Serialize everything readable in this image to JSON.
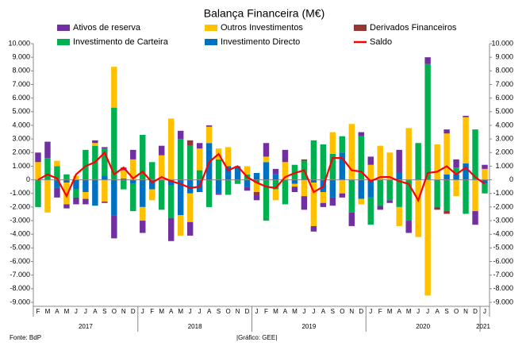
{
  "chart_data": {
    "type": "bar",
    "title": "Balança Financeira (M€)",
    "categories": [
      "F",
      "M",
      "A",
      "M",
      "J",
      "J",
      "A",
      "S",
      "O",
      "N",
      "D",
      "J",
      "F",
      "M",
      "A",
      "M",
      "J",
      "J",
      "A",
      "S",
      "O",
      "N",
      "D",
      "J",
      "F",
      "M",
      "A",
      "M",
      "J",
      "J",
      "A",
      "S",
      "O",
      "N",
      "D",
      "J",
      "F",
      "M",
      "A",
      "M",
      "J",
      "J",
      "A",
      "S",
      "O",
      "N",
      "D",
      "J"
    ],
    "years": [
      "2017",
      "2018",
      "2019",
      "2020",
      "2021"
    ],
    "series": [
      {
        "name": "Ativos de reserva",
        "color": "#7030a0",
        "values": [
          700,
          1200,
          -700,
          -300,
          -500,
          -400,
          200,
          100,
          -1700,
          200,
          700,
          -900,
          0,
          700,
          -1700,
          600,
          -1000,
          400,
          100,
          -100,
          0,
          0,
          -300,
          -400,
          1000,
          400,
          900,
          -400,
          -1000,
          -400,
          -300,
          -600,
          -300,
          -1000,
          300,
          600,
          -300,
          -200,
          1700,
          -900,
          0,
          500,
          0,
          300,
          600,
          100,
          -1000,
          300
        ]
      },
      {
        "name": "Outros Investimentos",
        "color": "#ffc000",
        "values": [
          1300,
          -2400,
          400,
          -1600,
          300,
          -500,
          200,
          -1600,
          3000,
          600,
          1500,
          -1000,
          -800,
          1800,
          4500,
          -1500,
          -2100,
          1600,
          1200,
          800,
          1400,
          0,
          600,
          -700,
          400,
          -800,
          1300,
          -200,
          -1200,
          -3200,
          -800,
          1600,
          -1000,
          4100,
          -400,
          1100,
          2500,
          2000,
          -1400,
          3800,
          -4200,
          -8500,
          2600,
          3000,
          -1200,
          3400,
          -2300,
          800
        ]
      },
      {
        "name": "Derivados Financeiros",
        "color": "#943634",
        "values": [
          0,
          0,
          0,
          0,
          0,
          0,
          0,
          -100,
          0,
          0,
          0,
          0,
          0,
          0,
          0,
          0,
          400,
          0,
          0,
          0,
          0,
          0,
          0,
          -200,
          0,
          0,
          0,
          0,
          100,
          0,
          0,
          0,
          0,
          0,
          0,
          0,
          0,
          0,
          0,
          0,
          0,
          0,
          -200,
          -200,
          0,
          0,
          0,
          0
        ]
      },
      {
        "name": "Investimento de Carteira",
        "color": "#00b050",
        "values": [
          -2000,
          1600,
          1000,
          400,
          -600,
          2200,
          2500,
          2000,
          5300,
          -700,
          -2000,
          3300,
          1300,
          -2200,
          -2400,
          3000,
          2500,
          700,
          -2000,
          1500,
          -1100,
          -300,
          400,
          -200,
          -3000,
          -700,
          -1800,
          1100,
          1400,
          2900,
          2600,
          1900,
          1200,
          -2400,
          3200,
          -2000,
          -1900,
          -1500,
          -2000,
          -3000,
          2700,
          8500,
          -2000,
          -2300,
          500,
          -2500,
          3700,
          -700
        ]
      },
      {
        "name": "Investimento Directo",
        "color": "#0070c0",
        "values": [
          0,
          0,
          -600,
          -200,
          -700,
          -900,
          -1900,
          300,
          -2600,
          100,
          -300,
          -2000,
          -700,
          0,
          -400,
          -2600,
          -1000,
          -900,
          2700,
          -1000,
          1000,
          1000,
          -500,
          500,
          1300,
          400,
          0,
          -300,
          0,
          -200,
          -900,
          -1300,
          2000,
          0,
          -1400,
          -1300,
          0,
          0,
          500,
          0,
          0,
          0,
          0,
          400,
          400,
          1200,
          0,
          -300
        ]
      },
      {
        "name": "Saldo",
        "color": "#ff0000",
        "type": "line",
        "values": [
          0,
          400,
          100,
          -1200,
          400,
          1000,
          1300,
          2000,
          400,
          900,
          100,
          600,
          -200,
          200,
          -100,
          -300,
          -600,
          -500,
          1300,
          1900,
          700,
          1000,
          200,
          -200,
          -500,
          -600,
          200,
          500,
          700,
          -900,
          -500,
          1600,
          1600,
          700,
          600,
          -100,
          200,
          200,
          -100,
          -300,
          -1500,
          500,
          600,
          1000,
          400,
          900,
          200,
          -300
        ]
      }
    ],
    "ylim": [
      -9000,
      10000
    ],
    "yticks": [
      {
        "value": -9000,
        "label": "-9.000"
      },
      {
        "value": -8000,
        "label": "-8.000"
      },
      {
        "value": -7000,
        "label": "-7.000"
      },
      {
        "value": -6000,
        "label": "-6.000"
      },
      {
        "value": -5000,
        "label": "-5.000"
      },
      {
        "value": -4000,
        "label": "-4.000"
      },
      {
        "value": -3000,
        "label": "-3.000"
      },
      {
        "value": -2000,
        "label": "-2.000"
      },
      {
        "value": -1000,
        "label": "-1.000"
      },
      0,
      {
        "value": 1000,
        "label": "1.000"
      },
      {
        "value": 2000,
        "label": "2.000"
      },
      {
        "value": 3000,
        "label": "3.000"
      },
      {
        "value": 4000,
        "label": "4.000"
      },
      {
        "value": 5000,
        "label": "5.000"
      },
      {
        "value": 6000,
        "label": "6.000"
      },
      {
        "value": 7000,
        "label": "7.000"
      },
      {
        "value": 8000,
        "label": "8.000"
      },
      {
        "value": 9000,
        "label": "9.000"
      },
      {
        "value": 10000,
        "label": "10.000"
      }
    ],
    "y2lim": [
      -9000,
      10000
    ],
    "y2ticks": [
      {
        "value": -9000,
        "label": "-9.000"
      },
      {
        "value": -8000,
        "label": "-8.000"
      },
      {
        "value": -7000,
        "label": "-7.000"
      },
      {
        "value": -6000,
        "label": "-6.000"
      },
      {
        "value": -5000,
        "label": "-5.000"
      },
      {
        "value": -4000,
        "label": "-4.000"
      },
      {
        "value": -3000,
        "label": "-3.000"
      },
      {
        "value": -2000,
        "label": "-2.000"
      },
      {
        "value": -1000,
        "label": "-1.000"
      },
      0,
      {
        "value": 1000,
        "label": "1.000"
      },
      {
        "value": 2000,
        "label": "2.000"
      },
      {
        "value": 3000,
        "label": "3.000"
      },
      {
        "value": 4000,
        "label": "4.000"
      },
      {
        "value": 5000,
        "label": "5.000"
      },
      {
        "value": 6000,
        "label": "6.000"
      },
      {
        "value": 7000,
        "label": "7.000"
      },
      {
        "value": 8000,
        "label": "8.000"
      },
      {
        "value": 9000,
        "label": "9.000"
      },
      {
        "value": 10000,
        "label": "10.000"
      }
    ],
    "grid": false,
    "source": "Fonte: BdP",
    "credit": "|Gráfico: GEE|"
  }
}
